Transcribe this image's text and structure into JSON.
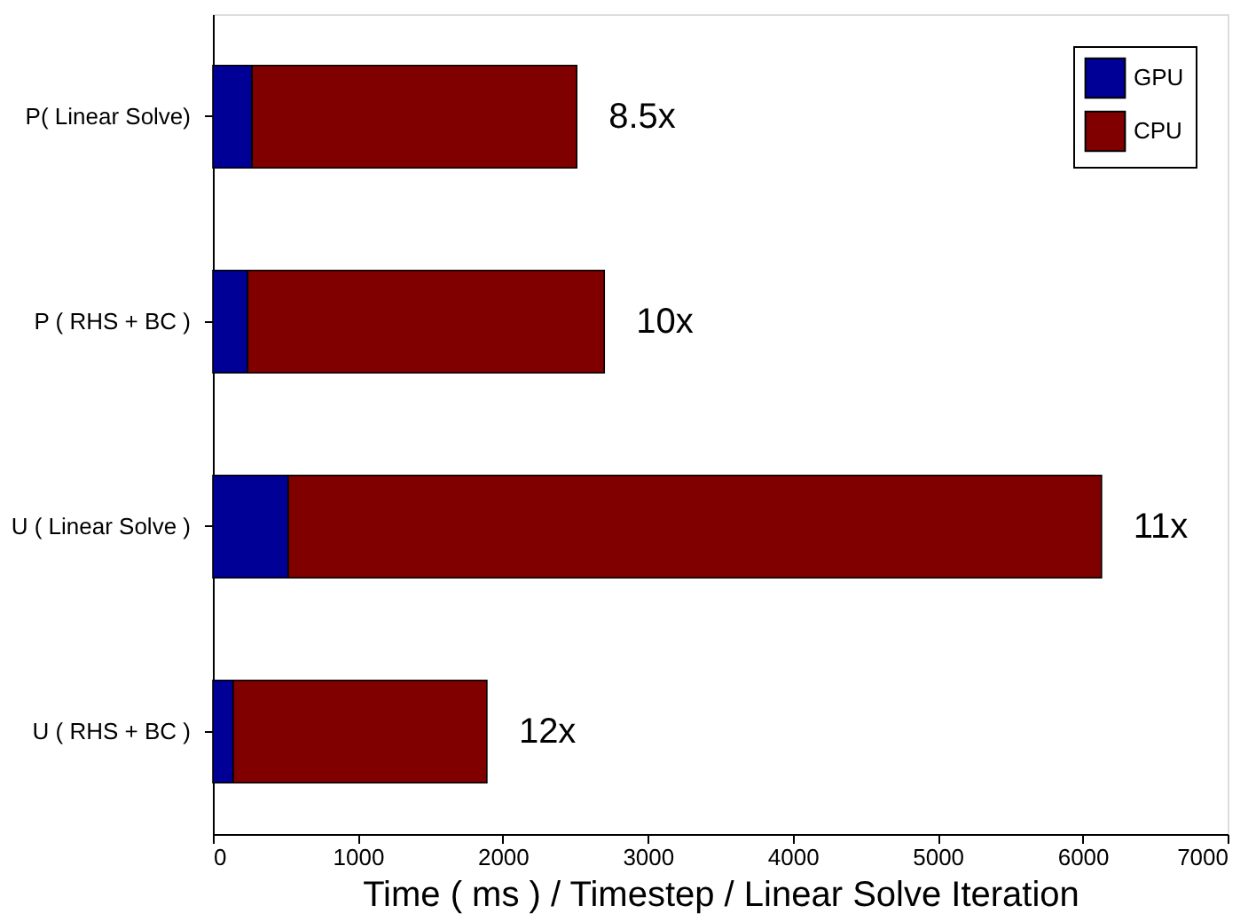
{
  "chart_data": {
    "type": "bar",
    "orientation": "horizontal",
    "xlabel": "Time ( ms ) / Timestep / Linear Solve Iteration",
    "categories": [
      "P( Linear Solve)",
      "P ( RHS + BC )",
      "U ( Linear Solve )",
      "U ( RHS + BC )"
    ],
    "series": [
      {
        "name": "GPU",
        "color": "#000096",
        "values": [
          270,
          240,
          520,
          140
        ]
      },
      {
        "name": "CPU",
        "color": "#800000",
        "values": [
          2240,
          2460,
          5610,
          1750
        ]
      }
    ],
    "stacked": true,
    "xlim": [
      0,
      7000
    ],
    "xticks": [
      0,
      1000,
      2000,
      3000,
      4000,
      5000,
      6000,
      7000
    ],
    "grid": false,
    "legend": "top right",
    "annotations": [
      {
        "text": "8.5x",
        "x": 2510,
        "y": "P( Linear Solve)"
      },
      {
        "text": "10x",
        "x": 2700,
        "y": "P ( RHS + BC )"
      },
      {
        "text": "11x",
        "x": 6130,
        "y": "U ( Linear Solve )"
      },
      {
        "text": "12x",
        "x": 1890,
        "y": "U ( RHS + BC )"
      }
    ]
  }
}
